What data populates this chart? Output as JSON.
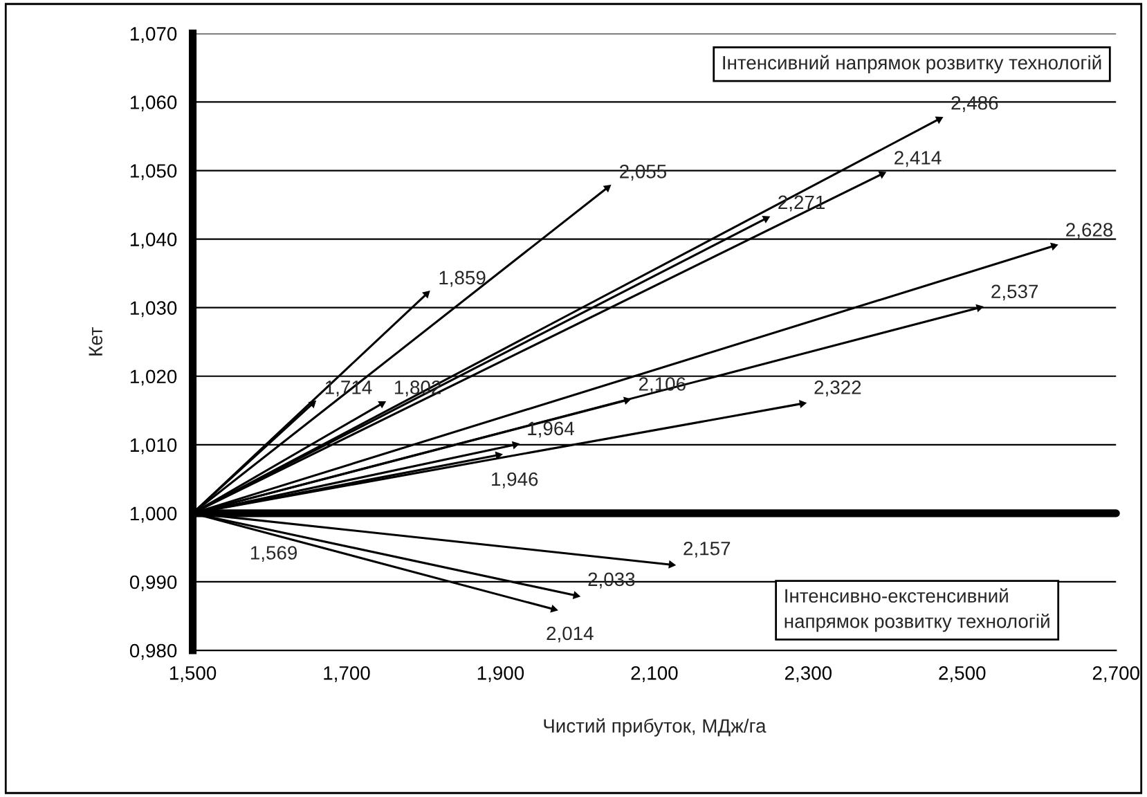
{
  "chart_data": {
    "type": "line",
    "xlabel": "Чистий прибуток, МДж/га",
    "ylabel": "Кет",
    "xlim": [
      1.5,
      2.7
    ],
    "xticks": [
      {
        "value": 1.5,
        "label": "1,500"
      },
      {
        "value": 1.7,
        "label": "1,700"
      },
      {
        "value": 1.9,
        "label": "1,900"
      },
      {
        "value": 2.1,
        "label": "2,100"
      },
      {
        "value": 2.3,
        "label": "2,300"
      },
      {
        "value": 2.5,
        "label": "2,500"
      },
      {
        "value": 2.7,
        "label": "2,700"
      }
    ],
    "ylim": [
      0.98,
      1.07
    ],
    "yticks": [
      {
        "value": 0.98,
        "label": "0,980"
      },
      {
        "value": 0.99,
        "label": "0,990"
      },
      {
        "value": 1.0,
        "label": "1,000"
      },
      {
        "value": 1.01,
        "label": "1,010"
      },
      {
        "value": 1.02,
        "label": "1,020"
      },
      {
        "value": 1.03,
        "label": "1,030"
      },
      {
        "value": 1.04,
        "label": "1,040"
      },
      {
        "value": 1.05,
        "label": "1,050"
      },
      {
        "value": 1.06,
        "label": "1,060"
      },
      {
        "value": 1.07,
        "label": "1,070"
      }
    ],
    "grid": "y",
    "legend": false,
    "marker": "triangle",
    "line_style": "solid",
    "series": [
      {
        "color": "#000000",
        "x": [
          1.5,
          1.656
        ],
        "values": [
          1.0,
          1.016
        ]
      },
      {
        "color": "#000000",
        "x": [
          1.5,
          1.804
        ],
        "values": [
          1.0,
          1.032
        ]
      },
      {
        "color": "#000000",
        "x": [
          1.5,
          2.039
        ],
        "values": [
          1.0,
          1.0475
        ]
      },
      {
        "color": "#000000",
        "x": [
          1.5,
          1.746
        ],
        "values": [
          1.0,
          1.016
        ]
      },
      {
        "color": "#000000",
        "x": [
          1.5,
          2.245
        ],
        "values": [
          1.0,
          1.043
        ]
      },
      {
        "color": "#000000",
        "x": [
          1.5,
          2.396
        ],
        "values": [
          1.0,
          1.0495
        ]
      },
      {
        "color": "#000000",
        "x": [
          1.5,
          2.47
        ],
        "values": [
          1.0,
          1.0575
        ]
      },
      {
        "color": "#000000",
        "x": [
          1.5,
          2.619
        ],
        "values": [
          1.0,
          1.039
        ]
      },
      {
        "color": "#000000",
        "x": [
          1.5,
          2.522
        ],
        "values": [
          1.0,
          1.03
        ]
      },
      {
        "color": "#000000",
        "x": [
          1.5,
          2.064
        ],
        "values": [
          1.0,
          1.0165
        ]
      },
      {
        "color": "#000000",
        "x": [
          1.5,
          2.292
        ],
        "values": [
          1.0,
          1.016
        ]
      },
      {
        "color": "#000000",
        "x": [
          1.5,
          1.919
        ],
        "values": [
          1.0,
          1.01
        ]
      },
      {
        "color": "#000000",
        "x": [
          1.5,
          1.897
        ],
        "values": [
          1.0,
          1.0085
        ]
      },
      {
        "color": "#000000",
        "x": [
          1.5,
          2.122
        ],
        "values": [
          1.0,
          0.9925
        ]
      },
      {
        "color": "#000000",
        "x": [
          1.5,
          1.998
        ],
        "values": [
          1.0,
          0.988
        ]
      },
      {
        "color": "#000000",
        "x": [
          1.5,
          1.969
        ],
        "values": [
          1.0,
          0.986
        ]
      }
    ],
    "annotations": [
      "Інтенсивний напрямок розвитку технологій",
      "Інтенсивно-екстенсивний\nнапрямок розвитку технологій",
      {
        "text": "1,714",
        "x": 1.656,
        "y": 1.016
      },
      {
        "text": "1,859",
        "x": 1.804,
        "y": 1.032
      },
      {
        "text": "2,055",
        "x": 2.039,
        "y": 1.0475
      },
      {
        "text": "1,802",
        "x": 1.746,
        "y": 1.016
      },
      {
        "text": "2,271",
        "x": 2.245,
        "y": 1.043
      },
      {
        "text": "2,414",
        "x": 2.396,
        "y": 1.0495
      },
      {
        "text": "2,486",
        "x": 2.47,
        "y": 1.0575
      },
      {
        "text": "2,628",
        "x": 2.619,
        "y": 1.039
      },
      {
        "text": "2,537",
        "x": 2.522,
        "y": 1.03
      },
      {
        "text": "2,106",
        "x": 2.064,
        "y": 1.0165
      },
      {
        "text": "2,322",
        "x": 2.292,
        "y": 1.016
      },
      {
        "text": "1,964",
        "x": 1.919,
        "y": 1.01
      },
      {
        "text": "1,946",
        "x": 1.897,
        "y": 1.0085
      },
      {
        "text": "1,569",
        "x": 1.569,
        "y": 1.0
      },
      {
        "text": "2,157",
        "x": 2.122,
        "y": 0.9925
      },
      {
        "text": "2,033",
        "x": 1.998,
        "y": 0.988
      },
      {
        "text": "2,014",
        "x": 1.969,
        "y": 0.986
      }
    ],
    "ref_lines": [
      {
        "axis": "y",
        "value": 1.0,
        "color": "#000000"
      }
    ]
  }
}
